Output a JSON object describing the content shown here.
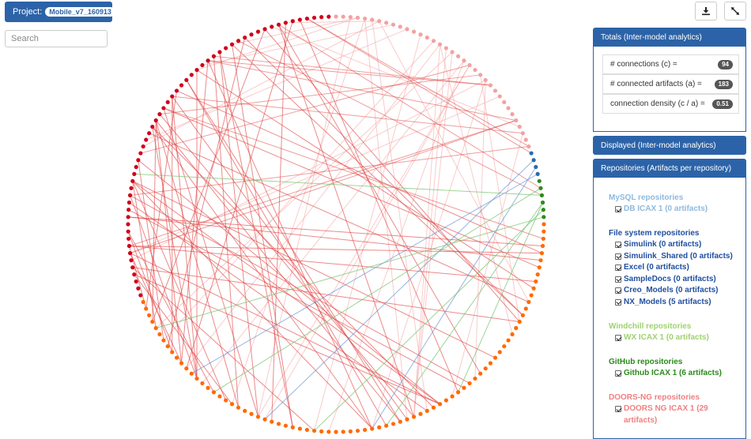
{
  "toolbar": {
    "project_label": "Project:",
    "project_name": "Mobile_v7_160913",
    "download_icon": "download-icon",
    "fullscreen_icon": "diagonal-arrow-icon"
  },
  "search": {
    "placeholder": "Search",
    "value": ""
  },
  "totals_panel": {
    "title": "Totals (Inter-model analytics)",
    "rows": [
      {
        "label": "# connections (c) =",
        "value": "94"
      },
      {
        "label": "# connected artifacts (a) =",
        "value": "183"
      },
      {
        "label": "connection density (c / a) =",
        "value": "0.51"
      }
    ]
  },
  "displayed_panel": {
    "title": "Displayed (Inter-model analytics)"
  },
  "repositories_panel": {
    "title": "Repositories (Artifacts per repository)",
    "groups": [
      {
        "title": "MySQL repositories",
        "color": "#8fb9dd",
        "items": [
          "DB ICAX 1 (0 artifacts)"
        ]
      },
      {
        "title": "File system repositories",
        "color": "#1f4e9e",
        "items": [
          "Simulink (0 artifacts)",
          "Simulink_Shared (0 artifacts)",
          "Excel (0 artifacts)",
          "SampleDocs (0 artifacts)",
          "Creo_Models (0 artifacts)",
          "NX_Models (5 artifacts)"
        ]
      },
      {
        "title": "Windchill repositories",
        "color": "#9fd26f",
        "items": [
          "WX ICAX 1 (0 artifacts)"
        ]
      },
      {
        "title": "GitHub repositories",
        "color": "#2a8a1a",
        "items": [
          "Github ICAX 1 (6 artifacts)"
        ]
      },
      {
        "title": "DOORS-NG repositories",
        "color": "#f08080",
        "items": [
          "DOORS NG ICAX 1 (29 artifacts)"
        ]
      }
    ]
  },
  "graph_colors": {
    "doors": "#f4a1a1",
    "nx": "#2a6bb0",
    "github": "#2e8b1f",
    "orange": "#ff6a00",
    "red": "#d0021b",
    "link_red": "#e03b3b",
    "link_blue": "#5b8fd0",
    "link_green": "#74c26a"
  }
}
